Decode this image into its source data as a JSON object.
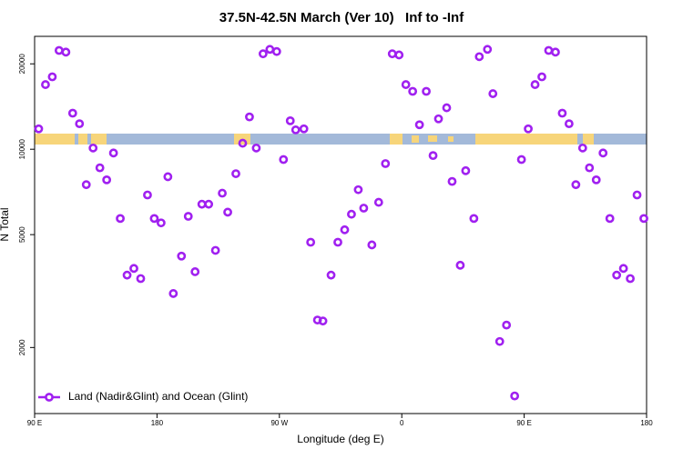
{
  "chart_data": {
    "type": "scatter",
    "title": "37.5N-42.5N March (Ver 10)   Inf to -Inf",
    "x_label": "Longitude (deg E)",
    "y_label": "N Total",
    "log_y": true,
    "legend_position": "lower left",
    "x": [
      93,
      98,
      103,
      108,
      113,
      118,
      123,
      128,
      133,
      138,
      143,
      148,
      153,
      158,
      163,
      168,
      173,
      178,
      183,
      188,
      192,
      198,
      203,
      208,
      213,
      218,
      223,
      228,
      232,
      238,
      243,
      248,
      253,
      258,
      263,
      268,
      273,
      278,
      282,
      288,
      293,
      298,
      302,
      308,
      313,
      318,
      323,
      328,
      332,
      338,
      343,
      348,
      353,
      358,
      363,
      368,
      373,
      378,
      383,
      387,
      393,
      397,
      403,
      407,
      413,
      417,
      423,
      427,
      432,
      437,
      443,
      448,
      453,
      458,
      463,
      468,
      473,
      478,
      483,
      488,
      493,
      498,
      503,
      508,
      513,
      518,
      523,
      528,
      533,
      538
    ],
    "series": [
      {
        "name": "Land (Nadir&Glint) and Ocean (Glint)",
        "color": "#a020f0",
        "values": [
          11800,
          16900,
          18000,
          22300,
          22000,
          13400,
          12300,
          7500,
          10100,
          8600,
          7800,
          9700,
          5700,
          3600,
          3800,
          3500,
          6900,
          5700,
          5500,
          8000,
          3100,
          4200,
          5800,
          3700,
          6400,
          6400,
          4400,
          7000,
          6000,
          8200,
          10500,
          13000,
          10100,
          21700,
          22500,
          22100,
          9200,
          12600,
          11700,
          11800,
          4700,
          2500,
          2480,
          3600,
          4700,
          5200,
          5900,
          7200,
          6200,
          4600,
          6500,
          8900,
          21700,
          21500,
          16900,
          16000,
          12200,
          16000,
          9500,
          12800,
          14000,
          7700,
          3900,
          8400,
          5700,
          21200,
          22500,
          15700,
          2100,
          2400,
          1350,
          9200,
          11800,
          16900,
          18000,
          22300,
          22000,
          13400,
          12300,
          7500,
          10100,
          8600,
          7800,
          9700,
          5700,
          3600,
          3800,
          3500,
          6900,
          5700
        ]
      }
    ],
    "xlim": [
      90,
      540
    ],
    "xticks": [
      {
        "value": 90,
        "label": "90 E"
      },
      180,
      {
        "value": 270,
        "label": "90 W"
      },
      {
        "value": 360,
        "label": "0"
      },
      {
        "value": 450,
        "label": "90 E"
      },
      {
        "value": 540,
        "label": "180"
      }
    ],
    "ylim": [
      1170,
      25000
    ],
    "yticks": [
      2000,
      5000,
      10000,
      20000
    ]
  }
}
